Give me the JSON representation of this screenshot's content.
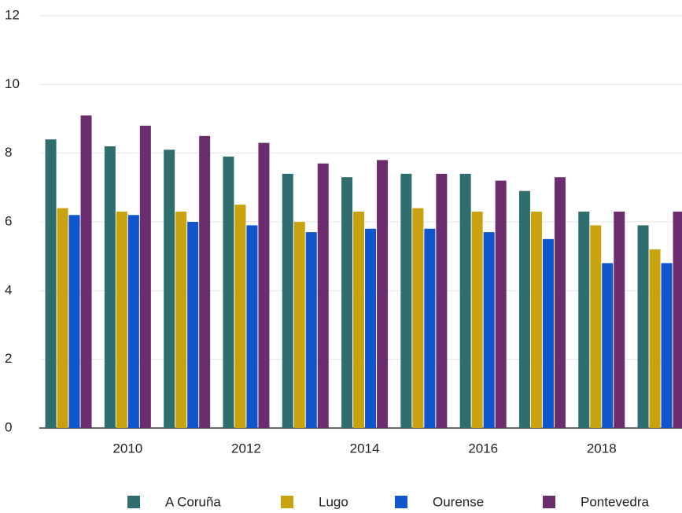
{
  "chart_data": {
    "type": "bar",
    "categories": [
      null,
      "2010",
      null,
      "2012",
      null,
      "2014",
      null,
      "2016",
      null,
      "2018",
      null
    ],
    "series": [
      {
        "name": "A Coruña",
        "color": "#2e6e6e",
        "values": [
          8.4,
          8.2,
          8.1,
          7.9,
          7.4,
          7.3,
          7.4,
          7.4,
          6.9,
          6.3,
          5.9
        ]
      },
      {
        "name": "Lugo",
        "color": "#c9a20f",
        "values": [
          6.4,
          6.3,
          6.3,
          6.5,
          6.0,
          6.3,
          6.4,
          6.3,
          6.3,
          5.9,
          5.2
        ]
      },
      {
        "name": "Ourense",
        "color": "#1155cc",
        "values": [
          6.2,
          6.2,
          6.0,
          5.9,
          5.7,
          5.8,
          5.8,
          5.7,
          5.5,
          4.8,
          4.8
        ]
      },
      {
        "name": "Pontevedra",
        "color": "#6c2d6e",
        "values": [
          9.1,
          8.8,
          8.5,
          8.3,
          7.7,
          7.8,
          7.4,
          7.2,
          7.3,
          6.3,
          6.3
        ]
      }
    ],
    "ylim": [
      0,
      12
    ],
    "yticks": [
      0,
      2,
      4,
      6,
      8,
      10,
      12
    ],
    "grid": true,
    "legend": "bottom"
  }
}
